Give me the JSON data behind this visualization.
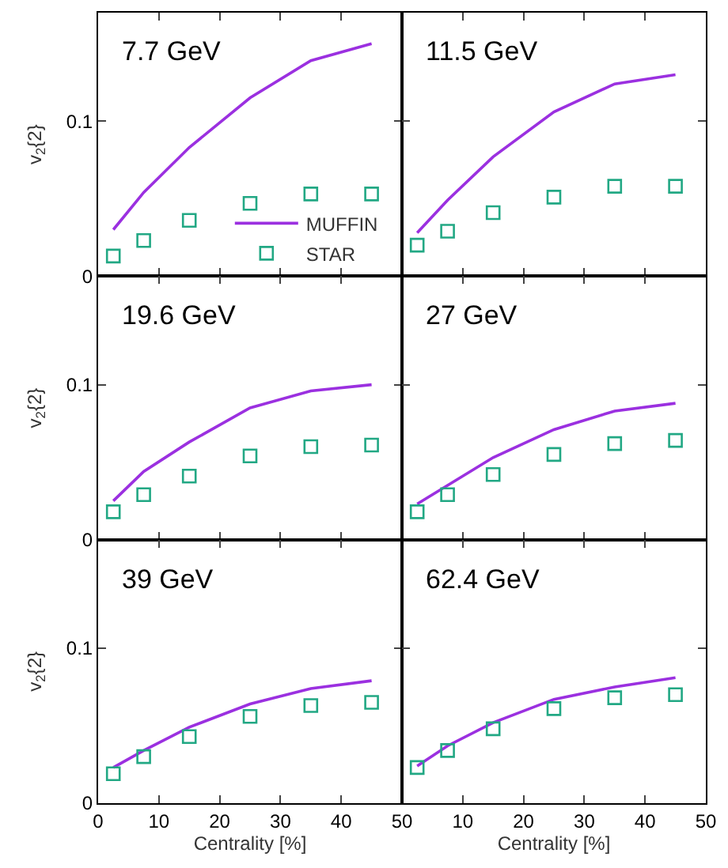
{
  "chart_data": [
    {
      "type": "line",
      "title": "7.7 GeV",
      "ylabel": "v$_{2}${2}",
      "x": [
        2.5,
        7.5,
        15,
        25,
        35,
        45
      ],
      "xlim": [
        0,
        50
      ],
      "xticks": [
        0,
        10,
        20,
        30,
        40,
        50
      ],
      "ylim": [
        0,
        0.17
      ],
      "yticks": [
        0,
        0.1
      ],
      "tick_labels": "y",
      "legend": "bottom right",
      "series": [
        {
          "name": "MUFFIN",
          "color": "#9b30e0",
          "values": [
            0.03,
            0.054,
            0.083,
            0.115,
            0.139,
            0.15
          ]
        },
        {
          "name": "STAR",
          "type": "scatter",
          "marker": "square",
          "color": "#22a884",
          "values": [
            0.013,
            0.023,
            0.036,
            0.047,
            0.053,
            0.053
          ]
        }
      ]
    },
    {
      "type": "line",
      "title": "11.5 GeV",
      "x": [
        2.5,
        7.5,
        15,
        25,
        35,
        45
      ],
      "xlim": [
        0,
        50
      ],
      "xticks": [
        0,
        10,
        20,
        30,
        40,
        50
      ],
      "ylim": [
        0,
        0.17
      ],
      "yticks": [
        0,
        0.1
      ],
      "tick_labels": false,
      "series": [
        {
          "color": "#9b30e0",
          "values": [
            0.028,
            0.049,
            0.077,
            0.106,
            0.124,
            0.13
          ]
        },
        {
          "type": "scatter",
          "marker": "square",
          "color": "#22a884",
          "values": [
            0.02,
            0.029,
            0.041,
            0.051,
            0.058,
            0.058
          ]
        }
      ]
    },
    {
      "type": "line",
      "title": "19.6 GeV",
      "ylabel": "v$_{2}${2}",
      "x": [
        2.5,
        7.5,
        15,
        25,
        35,
        45
      ],
      "xlim": [
        0,
        50
      ],
      "xticks": [
        0,
        10,
        20,
        30,
        40,
        50
      ],
      "ylim": [
        0,
        0.17
      ],
      "yticks": [
        0,
        0.1
      ],
      "tick_labels": "y",
      "series": [
        {
          "color": "#9b30e0",
          "values": [
            0.025,
            0.044,
            0.063,
            0.085,
            0.096,
            0.1
          ]
        },
        {
          "type": "scatter",
          "marker": "square",
          "color": "#22a884",
          "values": [
            0.018,
            0.029,
            0.041,
            0.054,
            0.06,
            0.061
          ]
        }
      ]
    },
    {
      "type": "line",
      "title": "27 GeV",
      "x": [
        2.5,
        7.5,
        15,
        25,
        35,
        45
      ],
      "xlim": [
        0,
        50
      ],
      "xticks": [
        0,
        10,
        20,
        30,
        40,
        50
      ],
      "ylim": [
        0,
        0.17
      ],
      "yticks": [
        0,
        0.1
      ],
      "tick_labels": false,
      "series": [
        {
          "color": "#9b30e0",
          "values": [
            0.023,
            0.035,
            0.053,
            0.071,
            0.083,
            0.088
          ]
        },
        {
          "type": "scatter",
          "marker": "square",
          "color": "#22a884",
          "values": [
            0.018,
            0.029,
            0.042,
            0.055,
            0.062,
            0.064
          ]
        }
      ]
    },
    {
      "type": "line",
      "title": "39 GeV",
      "ylabel": "v$_{2}${2}",
      "xlabel": "Centrality [%]",
      "x": [
        2.5,
        7.5,
        15,
        25,
        35,
        45
      ],
      "xlim": [
        0,
        50
      ],
      "xticks": [
        0,
        10,
        20,
        30,
        40,
        50
      ],
      "ylim": [
        0,
        0.17
      ],
      "yticks": [
        0,
        0.1
      ],
      "series": [
        {
          "color": "#9b30e0",
          "values": [
            0.023,
            0.034,
            0.049,
            0.064,
            0.074,
            0.079
          ]
        },
        {
          "type": "scatter",
          "marker": "square",
          "color": "#22a884",
          "values": [
            0.019,
            0.03,
            0.043,
            0.056,
            0.063,
            0.065
          ]
        }
      ]
    },
    {
      "type": "line",
      "title": "62.4 GeV",
      "xlabel": "Centrality [%]",
      "x": [
        2.5,
        7.5,
        15,
        25,
        35,
        45
      ],
      "xlim": [
        0,
        50
      ],
      "xticks": [
        10,
        20,
        30,
        40,
        50
      ],
      "ylim": [
        0,
        0.17
      ],
      "yticks": [
        0,
        0.1
      ],
      "tick_labels": "x",
      "series": [
        {
          "color": "#9b30e0",
          "values": [
            0.024,
            0.037,
            0.052,
            0.067,
            0.075,
            0.081
          ]
        },
        {
          "type": "scatter",
          "marker": "square",
          "color": "#22a884",
          "values": [
            0.023,
            0.034,
            0.048,
            0.061,
            0.068,
            0.07
          ]
        }
      ]
    }
  ]
}
